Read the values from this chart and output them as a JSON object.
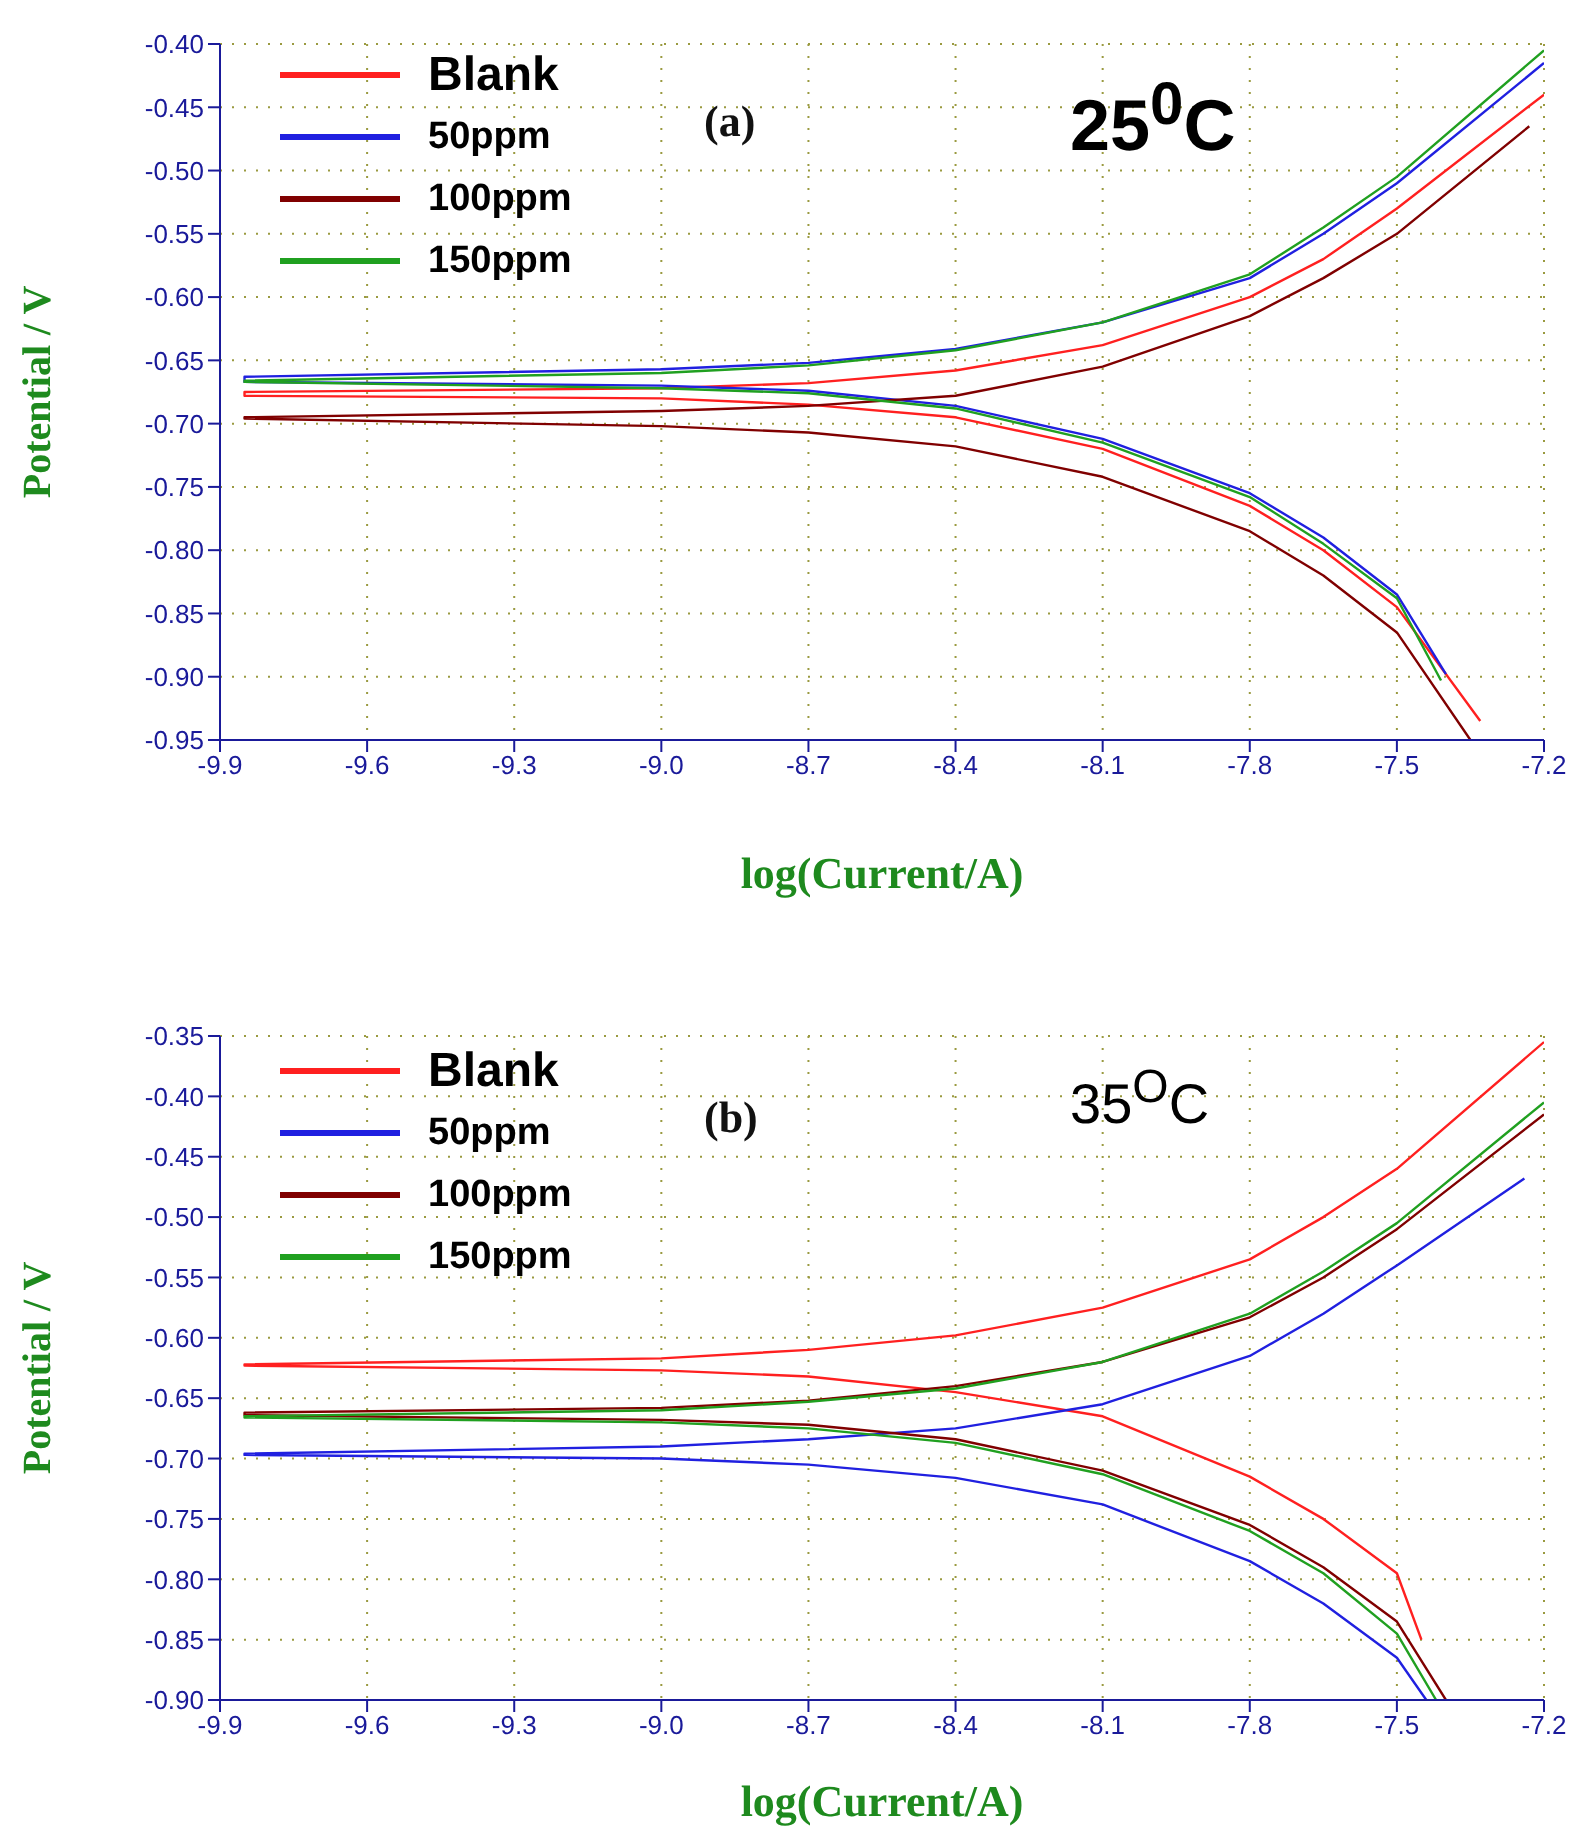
{
  "chart_data": [
    {
      "type": "line",
      "xlabel": "log(Current/A)",
      "ylabel": "Potential / V",
      "annotations": [
        "(a)",
        "25$^{0}$C"
      ],
      "legend": "top left",
      "grid": true,
      "marker": "none",
      "line_style": "solid",
      "xlim": [
        -9.9,
        -7.2
      ],
      "xticks": [
        -9.9,
        -9.6,
        -9.3,
        {
          "value": -9,
          "label": "-9.0"
        },
        -8.7,
        -8.4,
        -8.1,
        -7.8,
        -7.5,
        -7.2
      ],
      "ylim": [
        -0.95,
        -0.4
      ],
      "yticks": [
        -0.95,
        {
          "value": -0.9,
          "label": "-0.90"
        },
        -0.85,
        {
          "value": -0.8,
          "label": "-0.80"
        },
        -0.75,
        {
          "value": -0.7,
          "label": "-0.70"
        },
        -0.65,
        {
          "value": -0.6,
          "label": "-0.60"
        },
        -0.55,
        {
          "value": -0.5,
          "label": "-0.50"
        },
        -0.45,
        {
          "value": -0.4,
          "label": "-0.40"
        }
      ],
      "series": [
        {
          "name": "Blank",
          "color": "#ff2020",
          "x": [
            -7.33,
            -7.5,
            -7.65,
            -7.8,
            -8.1,
            -8.4,
            -8.7,
            -9.0,
            -9.85,
            -9.85,
            -9.0,
            -8.7,
            -8.4,
            -8.1,
            -7.8,
            -7.65,
            -7.5,
            -7.2
          ],
          "values": [
            -0.935,
            -0.845,
            -0.8,
            -0.765,
            -0.72,
            -0.695,
            -0.685,
            -0.68,
            -0.678,
            -0.675,
            -0.672,
            -0.668,
            -0.658,
            -0.638,
            -0.6,
            -0.57,
            -0.53,
            -0.44
          ]
        },
        {
          "name": "50ppm",
          "color": "#2020e0",
          "x": [
            -7.4,
            -7.5,
            -7.65,
            -7.8,
            -8.1,
            -8.4,
            -8.7,
            -9.0,
            -9.85,
            -9.85,
            -9.0,
            -8.7,
            -8.4,
            -8.1,
            -7.8,
            -7.65,
            -7.5,
            -7.2
          ],
          "values": [
            -0.898,
            -0.835,
            -0.79,
            -0.755,
            -0.712,
            -0.686,
            -0.674,
            -0.67,
            -0.667,
            -0.663,
            -0.657,
            -0.652,
            -0.641,
            -0.62,
            -0.585,
            -0.55,
            -0.51,
            -0.415
          ]
        },
        {
          "name": "100ppm",
          "color": "#800000",
          "x": [
            -7.35,
            -7.5,
            -7.65,
            -7.8,
            -8.1,
            -8.4,
            -8.7,
            -9.0,
            -9.85,
            -9.85,
            -9.0,
            -8.7,
            -8.4,
            -8.1,
            -7.8,
            -7.65,
            -7.5,
            -7.23
          ],
          "values": [
            -0.95,
            -0.865,
            -0.82,
            -0.785,
            -0.742,
            -0.718,
            -0.707,
            -0.702,
            -0.696,
            -0.695,
            -0.69,
            -0.686,
            -0.678,
            -0.655,
            -0.615,
            -0.585,
            -0.55,
            -0.465
          ]
        },
        {
          "name": "150ppm",
          "color": "#20a020",
          "x": [
            -7.41,
            -7.5,
            -7.65,
            -7.8,
            -8.1,
            -8.4,
            -8.7,
            -9.0,
            -9.85,
            -9.85,
            -9.0,
            -8.7,
            -8.4,
            -8.1,
            -7.8,
            -7.65,
            -7.5,
            -7.2
          ],
          "values": [
            -0.903,
            -0.838,
            -0.795,
            -0.758,
            -0.715,
            -0.688,
            -0.676,
            -0.672,
            -0.667,
            -0.666,
            -0.66,
            -0.654,
            -0.642,
            -0.62,
            -0.582,
            -0.545,
            -0.505,
            -0.405
          ]
        }
      ]
    },
    {
      "type": "line",
      "xlabel": "log(Current/A)",
      "ylabel": "Potential / V",
      "annotations": [
        "(b)",
        "35$^{O}$C"
      ],
      "legend": "top left",
      "grid": true,
      "marker": "none",
      "line_style": "solid",
      "xlim": [
        -9.9,
        -7.2
      ],
      "xticks": [
        -9.9,
        -9.6,
        -9.3,
        {
          "value": -9,
          "label": "-9.0"
        },
        -8.7,
        -8.4,
        -8.1,
        -7.8,
        -7.5,
        -7.2
      ],
      "ylim": [
        -0.9,
        -0.35
      ],
      "yticks": [
        {
          "value": -0.9,
          "label": "-0.90"
        },
        -0.85,
        {
          "value": -0.8,
          "label": "-0.80"
        },
        -0.75,
        {
          "value": -0.7,
          "label": "-0.70"
        },
        -0.65,
        {
          "value": -0.6,
          "label": "-0.60"
        },
        -0.55,
        {
          "value": -0.5,
          "label": "-0.50"
        },
        -0.45,
        {
          "value": -0.4,
          "label": "-0.40"
        },
        -0.35
      ],
      "series": [
        {
          "name": "Blank",
          "color": "#ff2020",
          "x": [
            -7.45,
            -7.5,
            -7.65,
            -7.8,
            -8.1,
            -8.4,
            -8.7,
            -9.0,
            -9.85,
            -9.85,
            -9.0,
            -8.7,
            -8.4,
            -8.1,
            -7.8,
            -7.65,
            -7.5,
            -7.2
          ],
          "values": [
            -0.85,
            -0.795,
            -0.75,
            -0.715,
            -0.665,
            -0.645,
            -0.632,
            -0.627,
            -0.623,
            -0.622,
            -0.617,
            -0.61,
            -0.598,
            -0.575,
            -0.535,
            -0.5,
            -0.46,
            -0.355
          ]
        },
        {
          "name": "50ppm",
          "color": "#2020e0",
          "x": [
            -7.44,
            -7.5,
            -7.65,
            -7.8,
            -8.1,
            -8.4,
            -8.7,
            -9.0,
            -9.85,
            -9.85,
            -9.0,
            -8.7,
            -8.4,
            -8.1,
            -7.8,
            -7.65,
            -7.5,
            -7.24
          ],
          "values": [
            -0.9,
            -0.865,
            -0.82,
            -0.785,
            -0.738,
            -0.716,
            -0.705,
            -0.7,
            -0.697,
            -0.696,
            -0.69,
            -0.684,
            -0.675,
            -0.655,
            -0.615,
            -0.58,
            -0.54,
            -0.468
          ]
        },
        {
          "name": "100ppm",
          "color": "#800000",
          "x": [
            -7.4,
            -7.5,
            -7.65,
            -7.8,
            -8.1,
            -8.4,
            -8.7,
            -9.0,
            -9.85,
            -9.85,
            -9.0,
            -8.7,
            -8.4,
            -8.1,
            -7.8,
            -7.65,
            -7.5,
            -7.2
          ],
          "values": [
            -0.9,
            -0.835,
            -0.79,
            -0.755,
            -0.71,
            -0.684,
            -0.672,
            -0.668,
            -0.664,
            -0.662,
            -0.658,
            -0.652,
            -0.64,
            -0.62,
            -0.583,
            -0.55,
            -0.51,
            -0.415
          ]
        },
        {
          "name": "150ppm",
          "color": "#20a020",
          "x": [
            -7.42,
            -7.5,
            -7.65,
            -7.8,
            -8.1,
            -8.4,
            -8.7,
            -9.0,
            -9.85,
            -9.85,
            -9.0,
            -8.7,
            -8.4,
            -8.1,
            -7.8,
            -7.65,
            -7.5,
            -7.2
          ],
          "values": [
            -0.9,
            -0.845,
            -0.795,
            -0.76,
            -0.713,
            -0.687,
            -0.675,
            -0.67,
            -0.666,
            -0.665,
            -0.66,
            -0.653,
            -0.642,
            -0.62,
            -0.58,
            -0.545,
            -0.505,
            -0.405
          ]
        }
      ]
    }
  ]
}
